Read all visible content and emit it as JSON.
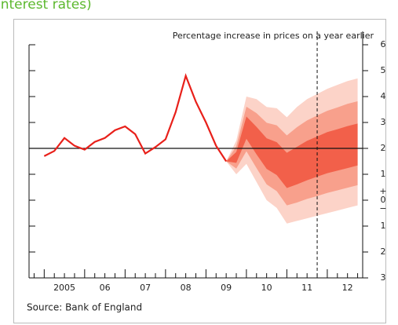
{
  "page_heading": "interest rates)",
  "chart_data": {
    "type": "fan",
    "subtitle": "Percentage increase in prices on a year earlier",
    "source": "Source: Bank of England",
    "xlim": [
      2004.625,
      2012.875
    ],
    "xticks": [
      {
        "value": 2005,
        "label": "2005"
      },
      {
        "value": 2006,
        "label": "06"
      },
      {
        "value": 2007,
        "label": "07"
      },
      {
        "value": 2008,
        "label": "08"
      },
      {
        "value": 2009,
        "label": "09"
      },
      {
        "value": 2010,
        "label": "10"
      },
      {
        "value": 2011,
        "label": "11"
      },
      {
        "value": 2012,
        "label": "12"
      }
    ],
    "ylim": [
      -3,
      6
    ],
    "yticks": [
      6,
      5,
      4,
      3,
      2,
      1,
      0,
      {
        "value": -1,
        "label": "1"
      },
      {
        "value": -2,
        "label": "2"
      },
      {
        "value": -3,
        "label": "3"
      }
    ],
    "zero_signs": [
      "+",
      "−"
    ],
    "target": 2,
    "forecast_marker": 2011.75,
    "series": [
      {
        "name": "CPI inflation",
        "color": "#e8201a",
        "x": [
          2005,
          2005.25,
          2005.5,
          2005.75,
          2006,
          2006.25,
          2006.5,
          2006.75,
          2007,
          2007.25,
          2007.5,
          2007.75,
          2008,
          2008.25,
          2008.5,
          2008.75,
          2009,
          2009.25,
          2009.5
        ],
        "values": [
          1.7,
          1.9,
          2.4,
          2.1,
          1.95,
          2.25,
          2.4,
          2.7,
          2.85,
          2.55,
          1.8,
          2.05,
          2.35,
          3.4,
          4.8,
          3.8,
          3.0,
          2.1,
          1.5
        ]
      }
    ],
    "fan": {
      "x": [
        2009.5,
        2009.75,
        2010,
        2010.25,
        2010.5,
        2010.75,
        2011,
        2011.25,
        2011.5,
        2011.75,
        2012,
        2012.25,
        2012.5,
        2012.75
      ],
      "bands": [
        {
          "color": "#fcd3c8",
          "upper": [
            1.5,
            2.3,
            4.0,
            3.9,
            3.6,
            3.55,
            3.2,
            3.6,
            3.9,
            4.1,
            4.3,
            4.45,
            4.6,
            4.7
          ],
          "lower": [
            1.5,
            1.0,
            1.4,
            0.7,
            0.0,
            -0.3,
            -0.9,
            -0.8,
            -0.7,
            -0.6,
            -0.5,
            -0.4,
            -0.3,
            -0.2
          ]
        },
        {
          "color": "#f8a08c",
          "upper": [
            1.5,
            2.08,
            3.61,
            3.36,
            2.99,
            2.89,
            2.5,
            2.82,
            3.08,
            3.27,
            3.45,
            3.58,
            3.72,
            3.82
          ],
          "lower": [
            1.5,
            1.22,
            1.89,
            1.24,
            0.61,
            0.35,
            -0.2,
            -0.09,
            0.05,
            0.16,
            0.28,
            0.38,
            0.48,
            0.58
          ]
        },
        {
          "color": "#f2604a",
          "upper": [
            1.5,
            1.86,
            3.23,
            2.83,
            2.39,
            2.24,
            1.83,
            2.06,
            2.29,
            2.46,
            2.63,
            2.74,
            2.86,
            2.96
          ],
          "lower": [
            1.5,
            1.44,
            2.37,
            1.77,
            1.21,
            0.97,
            0.47,
            0.61,
            0.77,
            0.91,
            1.04,
            1.14,
            1.24,
            1.34
          ]
        }
      ]
    }
  }
}
